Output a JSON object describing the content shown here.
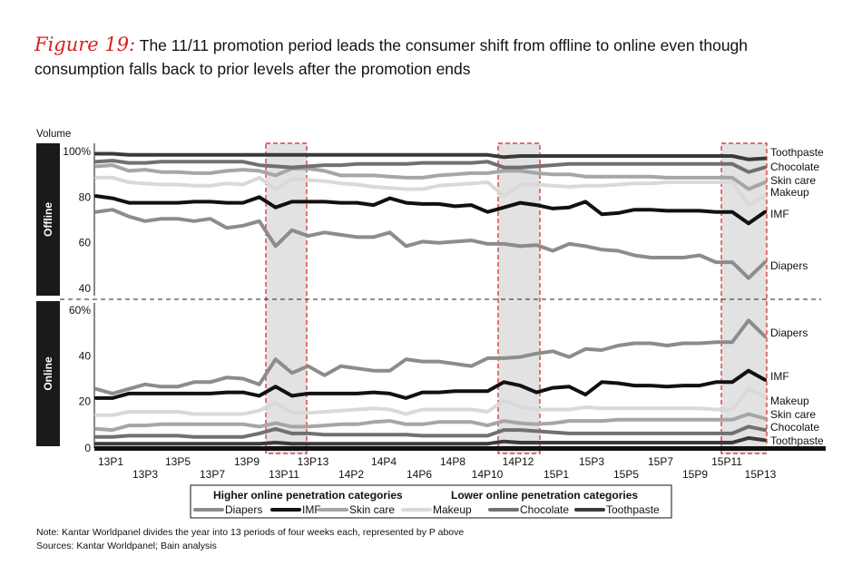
{
  "title": {
    "figure_label": "Figure 19:",
    "text": "The 11/11 promotion period leads the consumer shift from offline to online even though consumption falls back to prior levels after the promotion ends"
  },
  "notes": {
    "line1": "Note: Kantar Worldpanel divides the year into 13 periods of four weeks each, represented by P above",
    "line2": "Sources: Kantar Worldpanel; Bain analysis"
  },
  "chart_data": {
    "type": "line",
    "ylabel": "Volume",
    "panels": {
      "offline": {
        "label": "Offline",
        "ylim": [
          40,
          100
        ],
        "tick_labels": [
          "100%",
          "80",
          "60",
          "40"
        ],
        "tick_values": [
          100,
          80,
          60,
          40
        ]
      },
      "online": {
        "label": "Online",
        "ylim": [
          0,
          60
        ],
        "tick_labels": [
          "60%",
          "40",
          "20",
          "0"
        ],
        "tick_values": [
          60,
          40,
          20,
          0
        ]
      }
    },
    "x_tick_labels": [
      "13P1",
      "13P3",
      "13P5",
      "13P7",
      "13P9",
      "13P11",
      "13P13",
      "14P2",
      "14P4",
      "14P6",
      "14P8",
      "14P10",
      "14P12",
      "15P1",
      "15P3",
      "15P5",
      "15P7",
      "15P9",
      "15P11",
      "15P13"
    ],
    "highlight_periods": [
      [
        31.4,
        34.6
      ],
      [
        39.5,
        41.8
      ],
      [
        51.2,
        52.9
      ]
    ],
    "legend": {
      "higher_title": "Higher online penetration categories",
      "lower_title": "Lower online penetration categories"
    },
    "series": [
      {
        "name": "Diapers",
        "color": "#8c8c8c",
        "width": 4,
        "offline": [
          73.5,
          74.5,
          71.5,
          69.5,
          70.5,
          70.5,
          69.5,
          70.5,
          66.5,
          67.5,
          69.5,
          58.5,
          65.5,
          63,
          64.5,
          63.5,
          62.5,
          62.5,
          64.5,
          58.5,
          60.5,
          60,
          60.5,
          61,
          59.5,
          59.5,
          58.5,
          59,
          56.5,
          59.5,
          58.5,
          57,
          56.5,
          54.5,
          53.5,
          53.5,
          53.5,
          54.5,
          51.5,
          51.5,
          44.5,
          51.5
        ],
        "online": [
          25.5,
          23.5,
          25.5,
          27.5,
          26.5,
          26.5,
          28.5,
          28.5,
          30.5,
          30,
          27.5,
          38.5,
          32.5,
          35.5,
          31.5,
          35.5,
          34.5,
          33.5,
          33.5,
          38.5,
          37.5,
          37.5,
          36.5,
          35.5,
          39,
          39,
          39.5,
          41,
          42,
          39.5,
          43,
          42.5,
          44.5,
          45.5,
          45.5,
          44.5,
          45.5,
          45.5,
          46,
          46,
          55.5,
          48.5
        ]
      },
      {
        "name": "IMF",
        "color": "#111111",
        "width": 4,
        "offline": [
          80.5,
          79.5,
          77.5,
          77.5,
          77.5,
          77.5,
          78,
          78,
          77.5,
          77.5,
          80,
          75.5,
          78,
          78,
          78,
          77.5,
          77.5,
          76.5,
          79.5,
          77.5,
          77,
          77,
          76,
          76.5,
          73.5,
          75.5,
          77.5,
          76.5,
          75,
          75.5,
          78,
          72.5,
          73,
          74.5,
          74.5,
          74,
          74,
          74,
          73.5,
          73.5,
          68.5,
          73.5
        ],
        "online": [
          21.5,
          21.5,
          23.5,
          23.5,
          23.5,
          23.5,
          23.5,
          23.5,
          24,
          24,
          22.5,
          26.5,
          22.5,
          23.5,
          23.5,
          23.5,
          23.5,
          24,
          23.5,
          21.5,
          24,
          24,
          24.5,
          24.5,
          24.5,
          28.5,
          27,
          24,
          26,
          26.5,
          23,
          28.5,
          28,
          27,
          27,
          26.5,
          27,
          27,
          28.5,
          28.5,
          33.5,
          29.5
        ]
      },
      {
        "name": "Skin care",
        "color": "#a6a6a6",
        "width": 4,
        "offline": [
          93.5,
          94,
          91.5,
          92,
          91,
          91,
          90.5,
          90.5,
          91.5,
          92,
          91.5,
          89.5,
          92.5,
          92.5,
          91.5,
          89.5,
          89.5,
          89.5,
          89,
          88.5,
          88.5,
          89.5,
          90,
          90.5,
          90.5,
          91.5,
          91.5,
          90.5,
          90,
          90,
          89,
          89,
          89,
          89,
          89,
          88.5,
          88.5,
          88.5,
          88.5,
          88.5,
          83.5,
          86.5
        ],
        "online": [
          8,
          7.5,
          9.5,
          9.5,
          10,
          10,
          10,
          10,
          10,
          10,
          9,
          10.5,
          9,
          9,
          9.5,
          10,
          10,
          11,
          11.5,
          10,
          10,
          11,
          11,
          11,
          9.5,
          11.5,
          10.5,
          10,
          10.5,
          11.5,
          11.5,
          11.5,
          12,
          12,
          12,
          12,
          12,
          12,
          12,
          12,
          14.5,
          12.5
        ]
      },
      {
        "name": "Makeup",
        "color": "#d9d9d9",
        "width": 4,
        "offline": [
          88.5,
          88.5,
          86.5,
          86,
          85.5,
          85.5,
          85,
          85,
          86,
          85.5,
          88.5,
          83.5,
          88,
          87.5,
          87,
          86,
          85.5,
          84.5,
          84,
          83.5,
          83.5,
          85,
          85.5,
          86,
          86.5,
          80.5,
          85.5,
          85.5,
          85,
          84.5,
          85,
          85,
          85.5,
          86,
          86,
          86.5,
          86.5,
          86.5,
          86.5,
          86.5,
          76.5,
          80.5
        ],
        "online": [
          14,
          14,
          15.5,
          15.5,
          15.5,
          15.5,
          14.5,
          14.5,
          14.5,
          14.5,
          16,
          19.5,
          15,
          15,
          15.5,
          16,
          16.5,
          17,
          16.5,
          14.5,
          16.5,
          16.5,
          16.5,
          16.5,
          15.5,
          20.5,
          17.5,
          16.5,
          16.5,
          16.5,
          17.5,
          17,
          17,
          17,
          17,
          17,
          17,
          17,
          16.5,
          16.5,
          25.5,
          22
        ]
      },
      {
        "name": "Chocolate",
        "color": "#707070",
        "width": 4,
        "offline": [
          95.5,
          96,
          95,
          95,
          95.5,
          95.5,
          95.5,
          95.5,
          95.5,
          95.5,
          94,
          93.5,
          93,
          93.5,
          94,
          94,
          94.5,
          94.5,
          94.5,
          94.5,
          95,
          95,
          95,
          95,
          95.5,
          93,
          93,
          93.5,
          94,
          94.5,
          94.5,
          94.5,
          94.5,
          94.5,
          94.5,
          94.5,
          94.5,
          94.5,
          94.5,
          94.5,
          91,
          93
        ],
        "online": [
          4.5,
          4.5,
          5,
          5,
          5,
          5,
          4.5,
          4.5,
          4.5,
          4.5,
          6,
          8,
          6,
          6,
          5.5,
          5.5,
          5.5,
          5.5,
          5.5,
          5.5,
          5,
          5,
          5,
          5,
          5,
          7.5,
          7.5,
          7,
          6.5,
          6,
          6,
          6,
          6,
          6,
          6,
          6,
          6,
          6,
          6,
          6,
          9,
          7.5
        ]
      },
      {
        "name": "Toothpaste",
        "color": "#3a3a3a",
        "width": 4,
        "offline": [
          99,
          99,
          98.5,
          98.5,
          98.5,
          98.5,
          98.5,
          98.5,
          98.5,
          98.5,
          98.5,
          98.5,
          98.5,
          98.5,
          98.5,
          98.5,
          98.5,
          98.5,
          98.5,
          98.5,
          98.5,
          98.5,
          98.5,
          98.5,
          98.5,
          97.5,
          98,
          98,
          98,
          98,
          98,
          98,
          98,
          98,
          98,
          98,
          98,
          98,
          98,
          98,
          96.5,
          97
        ],
        "online": [
          1.5,
          1.5,
          1.5,
          1.5,
          1.5,
          1.5,
          1.5,
          1.5,
          1.5,
          1.5,
          1.5,
          2,
          1.5,
          1.5,
          1.5,
          1.5,
          1.5,
          1.5,
          1.5,
          1.5,
          1.5,
          1.5,
          1.5,
          1.5,
          1.5,
          2.5,
          2,
          2,
          2,
          2,
          2,
          2,
          2,
          2,
          2,
          2,
          2,
          2,
          2,
          2,
          4,
          3
        ]
      }
    ]
  }
}
